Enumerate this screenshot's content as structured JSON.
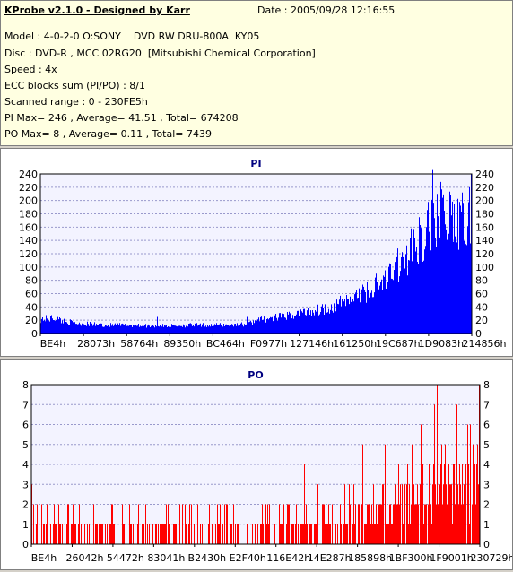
{
  "info": {
    "title": "KProbe v2.1.0 - Designed by Karr",
    "date": "Date : 2005/09/28 12:16:55",
    "model": "Model : 4-0-2-0 O:SONY    DVD RW DRU-800A  KY05",
    "disc": "Disc : DVD-R , MCC 02RG20  [Mitsubishi Chemical Corporation]",
    "speed": "Speed : 4x",
    "ecc": "ECC blocks sum (PI/PO) : 8/1",
    "range": "Scanned range : 0 - 230FE5h",
    "pi_stats": "PI Max= 246 , Average= 41.51 , Total= 674208",
    "po_stats": "PO Max= 8 , Average= 0.11 , Total= 7439"
  },
  "colors": {
    "info_bg": "#ffffe1",
    "pi_fill": "#0000ff",
    "po_fill": "#ff0000",
    "plot_bg": "#f3f3ff",
    "grid": "#9999cc",
    "title": "#000080"
  },
  "chart_data": [
    {
      "type": "bar",
      "title": "PI",
      "xlabel": "",
      "ylabel": "",
      "ylim": [
        0,
        240
      ],
      "yticks": [
        0,
        20,
        40,
        60,
        80,
        100,
        120,
        140,
        160,
        180,
        200,
        220,
        240
      ],
      "x_tick_labels": [
        "BE4h",
        "28073h",
        "58764h",
        "89350h",
        "BC464h",
        "F0977h",
        "127146h",
        "161250h",
        "19C687h",
        "1D9083h",
        "214856h"
      ],
      "grid": true,
      "x_range_hex": [
        "0",
        "230FE5h"
      ],
      "series": [
        {
          "envelope_x": [
            0,
            0.03,
            0.06,
            0.1,
            0.15,
            0.2,
            0.25,
            0.3,
            0.35,
            0.4,
            0.45,
            0.48,
            0.5,
            0.52,
            0.55,
            0.58,
            0.6,
            0.63,
            0.65,
            0.68,
            0.7,
            0.73,
            0.75,
            0.78,
            0.8,
            0.82,
            0.84,
            0.86,
            0.88,
            0.9,
            0.92,
            0.94,
            0.96,
            0.98,
            1.0
          ],
          "envelope_y": [
            22,
            24,
            18,
            15,
            13,
            13,
            12,
            12,
            13,
            13,
            14,
            14,
            20,
            22,
            25,
            28,
            32,
            34,
            38,
            42,
            48,
            55,
            62,
            72,
            82,
            95,
            110,
            125,
            142,
            160,
            178,
            190,
            172,
            162,
            175
          ],
          "spikes": [
            [
              0.27,
              25
            ],
            [
              0.48,
              25
            ],
            [
              0.56,
              30
            ],
            [
              0.62,
              38
            ],
            [
              0.71,
              58
            ],
            [
              0.74,
              68
            ],
            [
              0.78,
              90
            ],
            [
              0.8,
              95
            ],
            [
              0.83,
              128
            ],
            [
              0.86,
              158
            ],
            [
              0.88,
              175
            ],
            [
              0.9,
              198
            ],
            [
              0.91,
              246
            ],
            [
              0.92,
              210
            ],
            [
              0.93,
              228
            ],
            [
              0.945,
              238
            ],
            [
              0.96,
              195
            ],
            [
              0.98,
              212
            ],
            [
              0.995,
              220
            ],
            [
              1.0,
              240
            ]
          ]
        }
      ]
    },
    {
      "type": "bar",
      "title": "PO",
      "xlabel": "",
      "ylabel": "",
      "ylim": [
        0,
        8
      ],
      "yticks": [
        0,
        1,
        2,
        3,
        4,
        5,
        6,
        7,
        8
      ],
      "x_tick_labels": [
        "BE4h",
        "26042h",
        "54472h",
        "83041h",
        "B2430h",
        "E2F40h",
        "116E42h",
        "14E287h",
        "185898h",
        "1BF300h",
        "1F9001h",
        "230729h"
      ],
      "grid": true,
      "x_range_hex": [
        "0",
        "230FE5h"
      ],
      "series": [
        {
          "envelope_x": [
            0,
            0.1,
            0.2,
            0.3,
            0.4,
            0.5,
            0.55,
            0.6,
            0.65,
            0.7,
            0.75,
            0.8,
            0.85,
            0.9,
            0.95,
            1.0
          ],
          "envelope_y": [
            0.9,
            0.6,
            0.5,
            0.6,
            0.6,
            0.7,
            0.8,
            0.9,
            1.1,
            1.3,
            1.6,
            2.0,
            2.6,
            3.2,
            3.4,
            3.6
          ],
          "spikes": [
            [
              0.0,
              3
            ],
            [
              0.18,
              2
            ],
            [
              0.3,
              2
            ],
            [
              0.45,
              2
            ],
            [
              0.61,
              4
            ],
            [
              0.64,
              3
            ],
            [
              0.72,
              3
            ],
            [
              0.74,
              5
            ],
            [
              0.79,
              5
            ],
            [
              0.82,
              4
            ],
            [
              0.85,
              5
            ],
            [
              0.87,
              6
            ],
            [
              0.89,
              7
            ],
            [
              0.9,
              7
            ],
            [
              0.905,
              8
            ],
            [
              0.91,
              7
            ],
            [
              0.93,
              6
            ],
            [
              0.95,
              7
            ],
            [
              0.98,
              6
            ],
            [
              1.0,
              8
            ]
          ]
        }
      ]
    }
  ]
}
